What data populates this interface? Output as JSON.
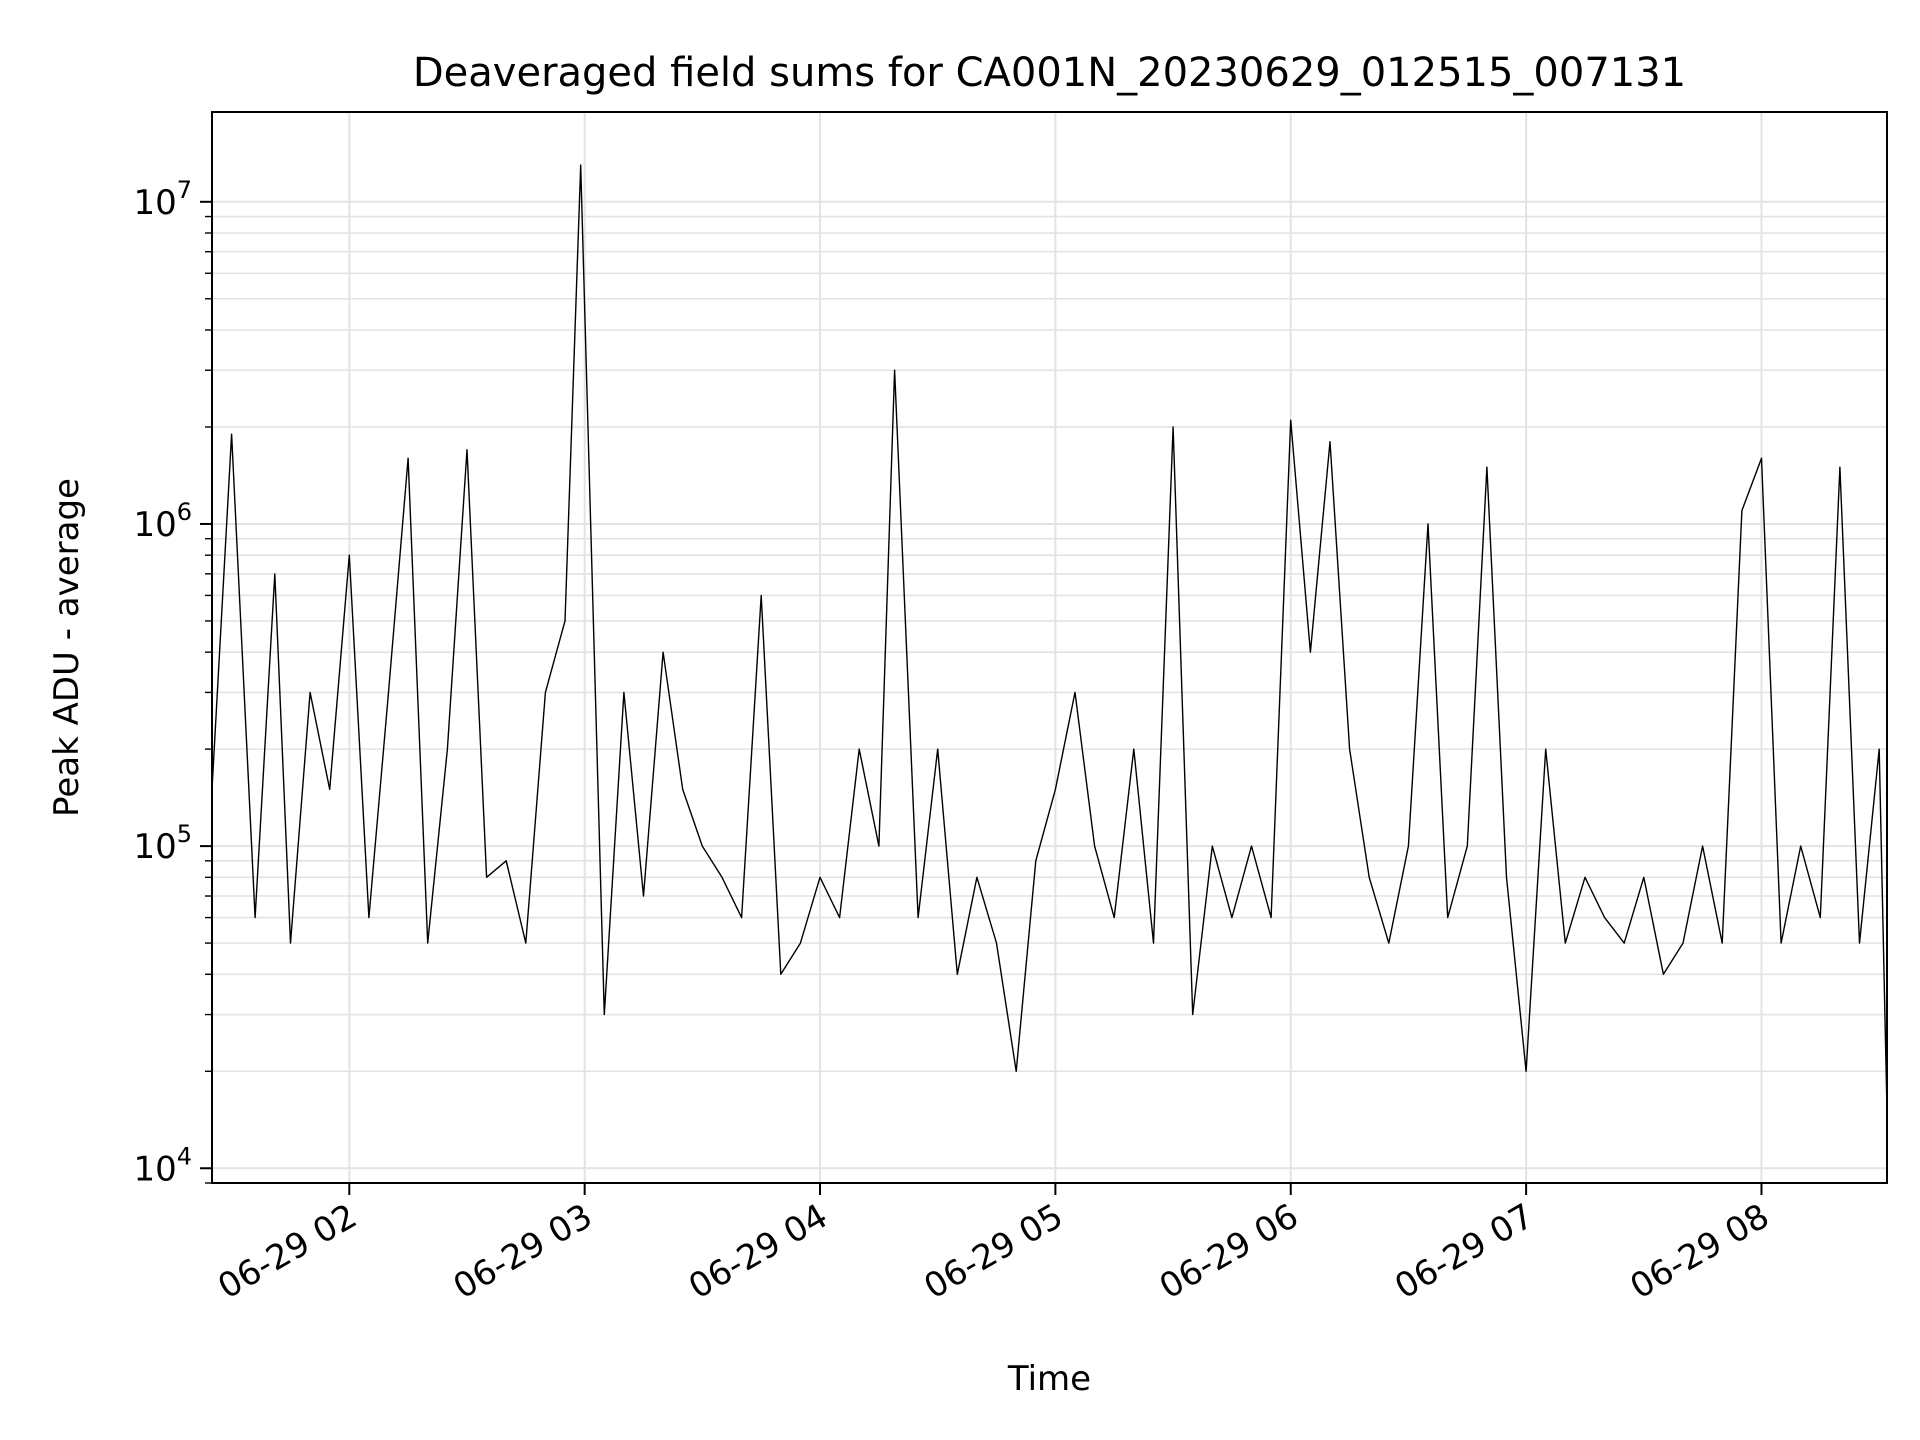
{
  "chart_data": {
    "type": "line",
    "title": "Deaveraged field sums for CA001N_20230629_012515_007131",
    "xlabel": "Time",
    "ylabel": "Peak ADU - average",
    "yscale": "log",
    "xlim": [
      "2023-06-29 01:25",
      "2023-06-29 08:32"
    ],
    "ylim": [
      9000,
      19000000
    ],
    "grid": true,
    "legend": "none",
    "line_color": "#000000",
    "x_ticks": [
      {
        "value": "2023-06-29 02:00",
        "label": "06-29 02"
      },
      {
        "value": "2023-06-29 03:00",
        "label": "06-29 03"
      },
      {
        "value": "2023-06-29 04:00",
        "label": "06-29 04"
      },
      {
        "value": "2023-06-29 05:00",
        "label": "06-29 05"
      },
      {
        "value": "2023-06-29 06:00",
        "label": "06-29 06"
      },
      {
        "value": "2023-06-29 07:00",
        "label": "06-29 07"
      },
      {
        "value": "2023-06-29 08:00",
        "label": "06-29 08"
      }
    ],
    "y_ticks": [
      {
        "value": 10000,
        "base": "10",
        "exp": "4"
      },
      {
        "value": 100000,
        "base": "10",
        "exp": "5"
      },
      {
        "value": 1000000,
        "base": "10",
        "exp": "6"
      },
      {
        "value": 10000000,
        "base": "10",
        "exp": "7"
      }
    ],
    "series": [
      {
        "x": [
          "2023-06-29 01:25",
          "2023-06-29 01:30",
          "2023-06-29 01:36",
          "2023-06-29 01:41",
          "2023-06-29 01:45",
          "2023-06-29 01:50",
          "2023-06-29 01:55",
          "2023-06-29 02:00",
          "2023-06-29 02:05",
          "2023-06-29 02:10",
          "2023-06-29 02:15",
          "2023-06-29 02:20",
          "2023-06-29 02:25",
          "2023-06-29 02:30",
          "2023-06-29 02:35",
          "2023-06-29 02:40",
          "2023-06-29 02:45",
          "2023-06-29 02:50",
          "2023-06-29 02:55",
          "2023-06-29 02:59",
          "2023-06-29 03:05",
          "2023-06-29 03:10",
          "2023-06-29 03:15",
          "2023-06-29 03:20",
          "2023-06-29 03:25",
          "2023-06-29 03:30",
          "2023-06-29 03:35",
          "2023-06-29 03:40",
          "2023-06-29 03:45",
          "2023-06-29 03:50",
          "2023-06-29 03:55",
          "2023-06-29 04:00",
          "2023-06-29 04:05",
          "2023-06-29 04:10",
          "2023-06-29 04:15",
          "2023-06-29 04:19",
          "2023-06-29 04:25",
          "2023-06-29 04:30",
          "2023-06-29 04:35",
          "2023-06-29 04:40",
          "2023-06-29 04:45",
          "2023-06-29 04:50",
          "2023-06-29 04:55",
          "2023-06-29 05:00",
          "2023-06-29 05:05",
          "2023-06-29 05:10",
          "2023-06-29 05:15",
          "2023-06-29 05:20",
          "2023-06-29 05:25",
          "2023-06-29 05:30",
          "2023-06-29 05:35",
          "2023-06-29 05:40",
          "2023-06-29 05:45",
          "2023-06-29 05:50",
          "2023-06-29 05:55",
          "2023-06-29 06:00",
          "2023-06-29 06:05",
          "2023-06-29 06:10",
          "2023-06-29 06:15",
          "2023-06-29 06:20",
          "2023-06-29 06:25",
          "2023-06-29 06:30",
          "2023-06-29 06:35",
          "2023-06-29 06:40",
          "2023-06-29 06:45",
          "2023-06-29 06:50",
          "2023-06-29 06:55",
          "2023-06-29 07:00",
          "2023-06-29 07:05",
          "2023-06-29 07:10",
          "2023-06-29 07:15",
          "2023-06-29 07:20",
          "2023-06-29 07:25",
          "2023-06-29 07:30",
          "2023-06-29 07:35",
          "2023-06-29 07:40",
          "2023-06-29 07:45",
          "2023-06-29 07:50",
          "2023-06-29 07:55",
          "2023-06-29 08:00",
          "2023-06-29 08:05",
          "2023-06-29 08:10",
          "2023-06-29 08:15",
          "2023-06-29 08:20",
          "2023-06-29 08:25",
          "2023-06-29 08:30",
          "2023-06-29 08:32"
        ],
        "y": [
          150000,
          1900000,
          60000,
          700000,
          50000,
          300000,
          150000,
          800000,
          60000,
          300000,
          1600000,
          50000,
          200000,
          1700000,
          80000,
          90000,
          50000,
          300000,
          500000,
          13000000,
          30000,
          300000,
          70000,
          400000,
          150000,
          100000,
          80000,
          60000,
          600000,
          40000,
          50000,
          80000,
          60000,
          200000,
          100000,
          3000000,
          60000,
          200000,
          40000,
          80000,
          50000,
          20000,
          90000,
          150000,
          300000,
          100000,
          60000,
          200000,
          50000,
          2000000,
          30000,
          100000,
          60000,
          100000,
          60000,
          2100000,
          400000,
          1800000,
          200000,
          80000,
          50000,
          100000,
          1000000,
          60000,
          100000,
          1500000,
          80000,
          20000,
          200000,
          50000,
          80000,
          60000,
          50000,
          80000,
          40000,
          50000,
          100000,
          50000,
          1100000,
          1600000,
          50000,
          100000,
          60000,
          1500000,
          50000,
          200000,
          15000
        ]
      }
    ]
  }
}
